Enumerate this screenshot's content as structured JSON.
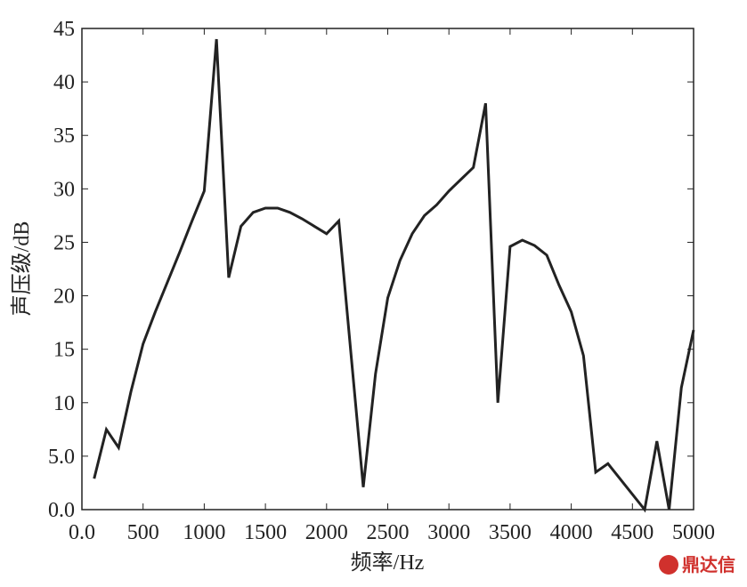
{
  "chart_data": {
    "type": "line",
    "xlabel": "频率/Hz",
    "ylabel": "声压级/dB",
    "x": [
      100,
      200,
      300,
      400,
      500,
      600,
      700,
      800,
      900,
      1000,
      1100,
      1200,
      1300,
      1400,
      1500,
      1600,
      1700,
      1800,
      1900,
      2000,
      2100,
      2200,
      2300,
      2400,
      2500,
      2600,
      2700,
      2800,
      2900,
      3000,
      3100,
      3200,
      3300,
      3400,
      3500,
      3600,
      3700,
      3800,
      3900,
      4000,
      4100,
      4150,
      4200,
      4300,
      4600,
      4700,
      4800,
      4900,
      5000
    ],
    "series": [
      {
        "color": "#222222",
        "values": [
          2.9,
          7.5,
          5.8,
          11,
          15.5,
          18.5,
          21.3,
          24.1,
          27,
          29.8,
          44,
          21.7,
          26.5,
          27.8,
          28.2,
          28.2,
          27.8,
          27.2,
          26.5,
          25.8,
          27,
          14.5,
          2.1,
          12.7,
          19.8,
          23.3,
          25.8,
          27.5,
          28.5,
          29.8,
          30.9,
          32,
          38,
          10,
          24.6,
          25.2,
          24.7,
          23.8,
          21,
          18.5,
          14.4,
          9,
          3.5,
          4.3,
          0,
          6.4,
          0,
          11.4,
          16.8
        ]
      }
    ],
    "xlim": [
      0,
      5000
    ],
    "xticks": [
      {
        "value": 0,
        "label": "0.0"
      },
      500,
      1000,
      1500,
      2000,
      2500,
      3000,
      3500,
      4000,
      4500,
      5000
    ],
    "ylim": [
      0,
      45
    ],
    "yticks": [
      {
        "value": 0,
        "label": "0.0"
      },
      {
        "value": 5,
        "label": "5.0"
      },
      10,
      15,
      20,
      25,
      30,
      35,
      40,
      45
    ],
    "watermark": "鼎达信"
  }
}
